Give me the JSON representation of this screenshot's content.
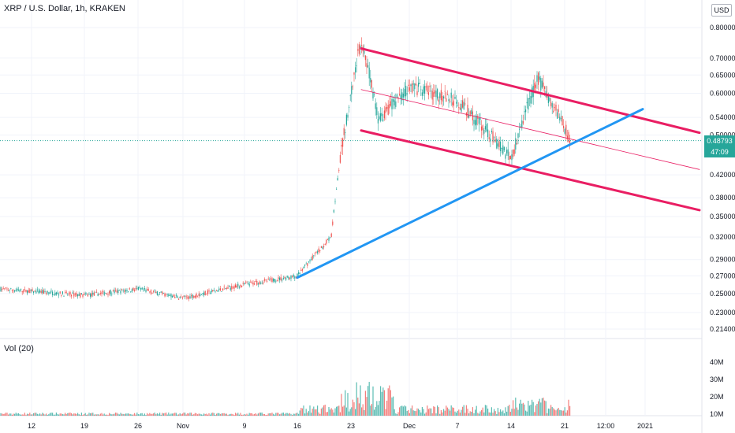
{
  "header": {
    "symbol_title": "XRP / U.S. Dollar, 1h, KRAKEN",
    "currency_button": "USD",
    "volume_title": "Vol (20)"
  },
  "price_badge": {
    "last_price": "0.48793",
    "countdown": "47:09"
  },
  "colors": {
    "up": "#26a69a",
    "down": "#ef5350",
    "channel": "#e91e63",
    "trendline": "#2196f3",
    "last_price_line": "#26a69a",
    "grid": "#f0f3fa",
    "axis_text": "#131722"
  },
  "chart_data": {
    "type": "candlestick",
    "symbol": "XRP / U.S. Dollar",
    "interval": "1h",
    "exchange": "KRAKEN",
    "price_scale": "log",
    "y_ticks": [
      "0.80000",
      "0.70000",
      "0.65000",
      "0.60000",
      "0.54000",
      "0.50000",
      "0.42000",
      "0.38000",
      "0.35000",
      "0.32000",
      "0.29000",
      "0.27000",
      "0.25000",
      "0.23000",
      "0.21400"
    ],
    "x_ticks": [
      "12",
      "19",
      "26",
      "Nov",
      "9",
      "16",
      "23",
      "Dec",
      "7",
      "14",
      "21",
      "12:00",
      "2021"
    ],
    "volume_ticks": [
      "40M",
      "30M",
      "20M",
      "10M"
    ],
    "price_path_approx": [
      {
        "x": "start",
        "price": 0.255
      },
      {
        "x": "19",
        "price": 0.248
      },
      {
        "x": "26",
        "price": 0.255
      },
      {
        "x": "Nov",
        "price": 0.245
      },
      {
        "x": "9",
        "price": 0.26
      },
      {
        "x": "16",
        "price": 0.27
      },
      {
        "x": "21",
        "price": 0.32
      },
      {
        "x": "23",
        "price": 0.6
      },
      {
        "x": "24",
        "price": 0.76
      },
      {
        "x": "26",
        "price": 0.53
      },
      {
        "x": "Dec",
        "price": 0.62
      },
      {
        "x": "7",
        "price": 0.58
      },
      {
        "x": "14",
        "price": 0.45
      },
      {
        "x": "17",
        "price": 0.64
      },
      {
        "x": "21",
        "price": 0.488
      }
    ],
    "annotations": {
      "channel_upper": {
        "from": {
          "x": "24",
          "price": 0.73
        },
        "to": {
          "x": "after 2021",
          "price": 0.505
        }
      },
      "channel_lower": {
        "from": {
          "x": "24",
          "price": 0.51
        },
        "to": {
          "x": "after 2021",
          "price": 0.36
        }
      },
      "channel_median": {
        "from": {
          "x": "24",
          "price": 0.61
        },
        "to": {
          "x": "after 2021",
          "price": 0.43
        }
      },
      "trendline_support": {
        "from": {
          "x": "16",
          "price": 0.268
        },
        "to": {
          "x": "12:00 after 21",
          "price": 0.56
        }
      }
    },
    "last_price": 0.48793
  }
}
